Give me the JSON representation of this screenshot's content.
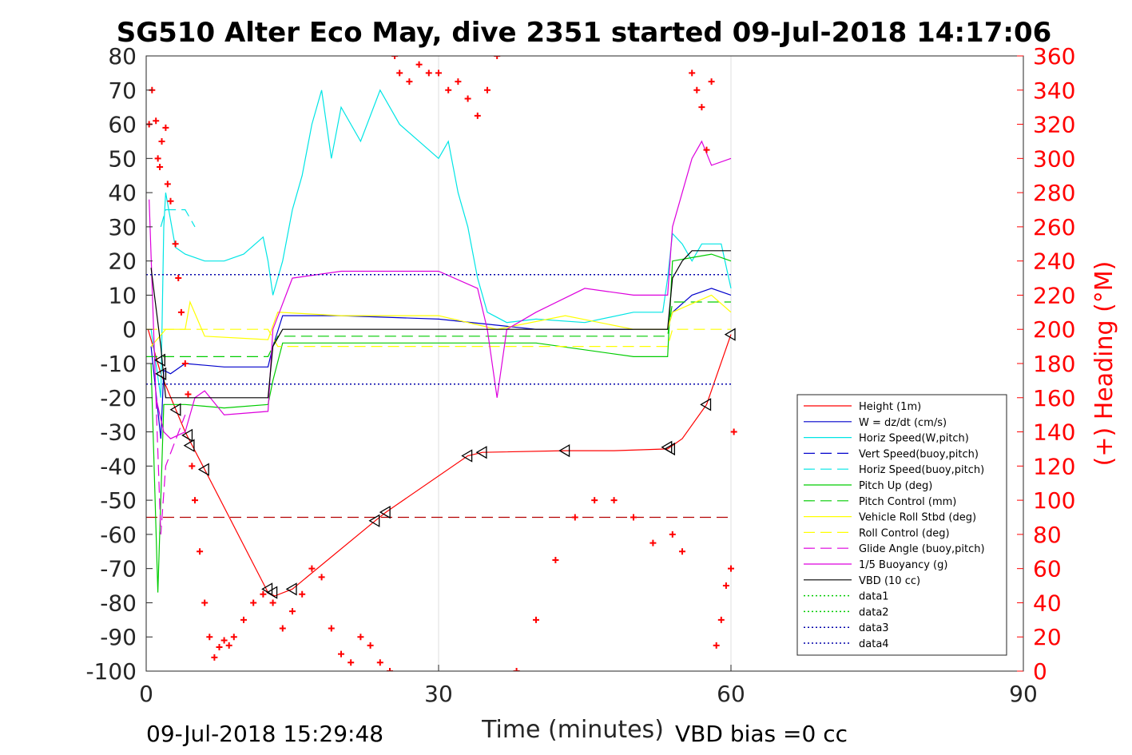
{
  "chart_data": {
    "type": "line",
    "title": "SG510 Alter Eco May, dive 2351 started 09-Jul-2018 14:17:06",
    "xlabel": "Time (minutes)",
    "ylabel_right": "(+) Heading (°M)",
    "xlim": [
      0,
      90
    ],
    "ylim": [
      -100,
      80
    ],
    "ylim_right": [
      0,
      360
    ],
    "x_ticks": [
      "0",
      "30",
      "60",
      "90"
    ],
    "y_ticks_left": [
      "80",
      "70",
      "60",
      "50",
      "40",
      "30",
      "20",
      "10",
      "0",
      "-10",
      "-20",
      "-30",
      "-40",
      "-50",
      "-60",
      "-70",
      "-80",
      "-90",
      "-100"
    ],
    "y_ticks_right": [
      "360",
      "340",
      "320",
      "300",
      "280",
      "260",
      "240",
      "220",
      "200",
      "180",
      "160",
      "140",
      "120",
      "100",
      "80",
      "60",
      "40",
      "20",
      "0"
    ],
    "grid": true,
    "legend_placement": "lower-right",
    "footer_left": "09-Jul-2018 15:29:48",
    "footer_right": "VBD bias =0 cc",
    "series": [
      {
        "name": "Height (1m)",
        "color": "#ff0000",
        "style": "solid",
        "x": [
          0.2,
          1.5,
          4,
          6,
          12.5,
          13.2,
          15,
          23.5,
          24.6,
          33,
          34.5,
          43,
          48,
          53.5,
          55,
          57.5,
          60
        ],
        "y": [
          0,
          -13,
          -30,
          -41,
          -77,
          -78,
          -76,
          -56,
          -53.5,
          -37,
          -36,
          -35.5,
          -35.5,
          -35,
          -32,
          -22,
          -1.5
        ]
      },
      {
        "name": "W = dz/dt (cm/s)",
        "color": "#0000cc",
        "style": "solid",
        "x": [
          0.5,
          1.5,
          1.8,
          2.5,
          4,
          8,
          12.5,
          13,
          14,
          20,
          30,
          40,
          50,
          53.5,
          54,
          56,
          58,
          60
        ],
        "y": [
          -5,
          -32,
          -12,
          -13,
          -10,
          -11,
          -11,
          -5,
          4,
          4,
          3,
          0,
          0,
          0,
          5,
          10,
          12,
          10
        ]
      },
      {
        "name": "Horiz Speed(W,pitch)",
        "color": "#00e5e5",
        "style": "solid",
        "x": [
          0.5,
          1.5,
          1.8,
          2,
          3,
          4,
          6,
          8,
          10,
          12,
          12.5,
          13,
          14,
          15,
          16,
          17,
          18,
          19,
          20,
          22,
          24,
          26,
          28,
          30,
          31,
          32,
          33,
          34,
          35,
          37,
          40,
          45,
          50,
          53,
          53.5,
          54,
          55,
          56,
          57,
          58,
          59,
          60
        ],
        "y": [
          0,
          -20,
          30,
          40,
          24,
          22,
          20,
          20,
          22,
          27,
          20,
          10,
          20,
          35,
          45,
          60,
          70,
          50,
          65,
          55,
          70,
          60,
          55,
          50,
          55,
          40,
          30,
          15,
          5,
          2,
          3,
          2,
          5,
          5,
          15,
          28,
          25,
          20,
          25,
          25,
          25,
          12
        ]
      },
      {
        "name": "Vert Speed(buoy,pitch)",
        "color": "#0000cc",
        "style": "dashed",
        "x": [],
        "y": []
      },
      {
        "name": "Horiz Speed(buoy,pitch)",
        "color": "#00e5e5",
        "style": "dashed",
        "x": [
          1.5,
          2,
          4,
          5
        ],
        "y": [
          30,
          35,
          35,
          30
        ]
      },
      {
        "name": "Pitch Up (deg)",
        "color": "#00cc00",
        "style": "solid",
        "x": [
          0.5,
          1.2,
          1.8,
          2.5,
          4,
          8,
          12.5,
          13,
          14,
          20,
          30,
          40,
          50,
          53.5,
          54,
          56,
          58,
          60
        ],
        "y": [
          -10,
          -77,
          -22,
          -22,
          -22,
          -23,
          -22,
          -15,
          -4,
          -4,
          -4,
          -4,
          -8,
          -8,
          20,
          21,
          22,
          20
        ]
      },
      {
        "name": "Pitch Control (mm)",
        "color": "#00cc00",
        "style": "dashed",
        "x": [
          0,
          12.5,
          13.5,
          53.5,
          54,
          60
        ],
        "y": [
          -8,
          -8,
          -2,
          -2,
          8,
          8
        ]
      },
      {
        "name": "Vehicle Roll Stbd (deg)",
        "color": "#ffff00",
        "style": "solid",
        "x": [
          0.5,
          2,
          3,
          4,
          4.5,
          6,
          12.5,
          13.5,
          20,
          30,
          36,
          43,
          50,
          53.5,
          54,
          58,
          60
        ],
        "y": [
          -5,
          0,
          0,
          0,
          8,
          -2,
          -3,
          5,
          4,
          4,
          0,
          4,
          0,
          0,
          5,
          10,
          5
        ]
      },
      {
        "name": "Roll Control (deg)",
        "color": "#ffff00",
        "style": "dashed",
        "x": [
          0,
          12.5,
          13.5,
          53.5,
          54,
          60
        ],
        "y": [
          0,
          0,
          -5,
          -5,
          0,
          0
        ]
      },
      {
        "name": "Glide Angle (buoy,pitch)",
        "color": "#dd00dd",
        "style": "dashed",
        "x": [
          1,
          1.5,
          2,
          4
        ],
        "y": [
          -20,
          -60,
          -40,
          -25
        ]
      },
      {
        "name": "1/5 Buoyancy (g)",
        "color": "#dd00dd",
        "style": "solid",
        "x": [
          0.3,
          1,
          1.8,
          2.5,
          4,
          5,
          6,
          8,
          12.5,
          13,
          15,
          20,
          30,
          34,
          35,
          36,
          37,
          40,
          45,
          50,
          53.5,
          54,
          55,
          56,
          57,
          58,
          60
        ],
        "y": [
          38,
          -20,
          -30,
          -32,
          -30,
          -20,
          -18,
          -25,
          -24,
          0,
          15,
          17,
          17,
          12,
          0,
          -20,
          0,
          5,
          12,
          10,
          10,
          30,
          40,
          50,
          55,
          48,
          50
        ]
      },
      {
        "name": "VBD (10 cc)",
        "color": "#000000",
        "style": "solid",
        "x": [
          0.5,
          1.5,
          2,
          12.5,
          13,
          14,
          53.5,
          54,
          55,
          56,
          60
        ],
        "y": [
          18,
          -5,
          -20,
          -20,
          -5,
          0,
          0,
          15,
          20,
          23,
          23
        ]
      },
      {
        "name": "data1",
        "color": "#00cc00",
        "style": "dotted",
        "x": [],
        "y": []
      },
      {
        "name": "data2",
        "color": "#00cc00",
        "style": "dotted",
        "x": [],
        "y": []
      },
      {
        "name": "data3",
        "color": "#0000aa",
        "style": "dotted",
        "x": [
          0,
          60
        ],
        "y": [
          16,
          16
        ]
      },
      {
        "name": "data4",
        "color": "#0000aa",
        "style": "dotted",
        "x": [
          0,
          60
        ],
        "y": [
          -16,
          -16
        ]
      }
    ],
    "reference_lines": [
      {
        "color": "#b30000",
        "style": "dashed",
        "y": -55,
        "x": [
          0,
          60
        ]
      }
    ],
    "heading_points": {
      "color": "#ff0000",
      "marker": "+",
      "x": [
        0.3,
        0.6,
        1,
        1.2,
        1.4,
        1.6,
        2,
        2.2,
        2.5,
        3,
        3.3,
        3.6,
        4,
        4.3,
        4.7,
        5,
        5.5,
        6,
        6.5,
        7,
        7.5,
        8,
        8.5,
        9,
        10,
        11,
        12,
        13,
        14,
        15,
        16,
        17,
        18,
        19,
        20,
        21,
        22,
        23,
        24,
        25,
        25.5,
        26,
        27,
        28,
        29,
        30,
        31,
        32,
        33,
        34,
        35,
        36,
        38,
        40,
        42,
        44,
        46,
        48,
        50,
        52,
        54,
        55,
        56,
        56.5,
        57,
        57.5,
        58,
        58.5,
        59,
        59.5,
        60,
        60.3
      ],
      "y": [
        320,
        340,
        322,
        300,
        295,
        310,
        318,
        285,
        275,
        250,
        230,
        210,
        180,
        162,
        120,
        100,
        70,
        40,
        20,
        8,
        14,
        18,
        15,
        20,
        30,
        40,
        45,
        40,
        25,
        35,
        45,
        60,
        55,
        25,
        10,
        5,
        20,
        15,
        5,
        0,
        360,
        350,
        345,
        355,
        350,
        350,
        340,
        345,
        335,
        325,
        340,
        360,
        0,
        30,
        65,
        90,
        100,
        100,
        90,
        75,
        80,
        70,
        350,
        340,
        330,
        305,
        345,
        15,
        30,
        50,
        60,
        140
      ]
    },
    "markers": {
      "color": "#000000",
      "shape": "triangle",
      "x": [
        1.5,
        1.6,
        3.1,
        4.3,
        4.5,
        6,
        12.5,
        13,
        15,
        23.5,
        24.6,
        33,
        34.5,
        43,
        53.5,
        53.8,
        57.5,
        60
      ],
      "y": [
        -9,
        -13,
        -23.5,
        -31,
        -34,
        -41,
        -76,
        -77,
        -76,
        -56,
        -53.5,
        -37,
        -36,
        -35.5,
        -34.5,
        -35,
        -22,
        -1.5
      ]
    }
  }
}
